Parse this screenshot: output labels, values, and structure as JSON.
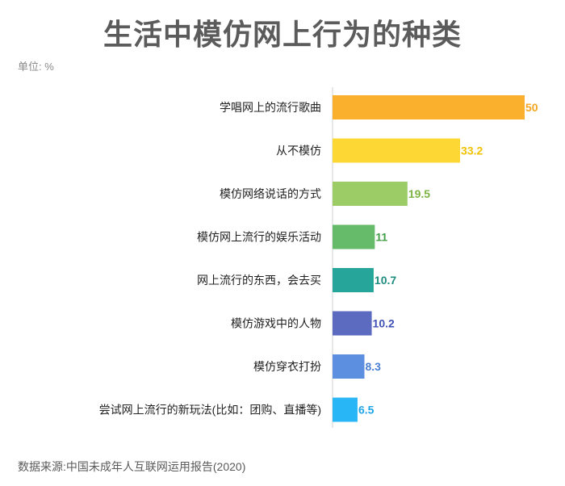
{
  "chart_data": {
    "type": "bar",
    "orientation": "horizontal",
    "title": "生活中模仿网上行为的种类",
    "unit_label": "单位: %",
    "source": "数据来源:中国未成年人互联网运用报告(2020)",
    "categories": [
      "学唱网上的流行歌曲",
      "从不模仿",
      "模仿网络说话的方式",
      "模仿网上流行的娱乐活动",
      "网上流行的东西，会去买",
      "模仿游戏中的人物",
      "模仿穿衣打扮",
      "尝试网上流行的新玩法(比如：团购、直播等)"
    ],
    "values": [
      50,
      33.2,
      19.5,
      11,
      10.7,
      10.2,
      8.3,
      6.5
    ],
    "value_labels": [
      "50",
      "33.2",
      "19.5",
      "11",
      "10.7",
      "10.2",
      "8.3",
      "6.5"
    ],
    "colors": [
      "#fbb02d",
      "#fdd835",
      "#9ccc65",
      "#66bb6a",
      "#26a69a",
      "#5c6bc0",
      "#5c8fe0",
      "#29b6f6"
    ],
    "label_colors": [
      "#f5a623",
      "#f2c200",
      "#7cb342",
      "#43a047",
      "#1e8c7e",
      "#3f51b5",
      "#4a7fd4",
      "#1ea5e8"
    ],
    "xlim": [
      0,
      50
    ],
    "grid": false,
    "legend": "none"
  }
}
